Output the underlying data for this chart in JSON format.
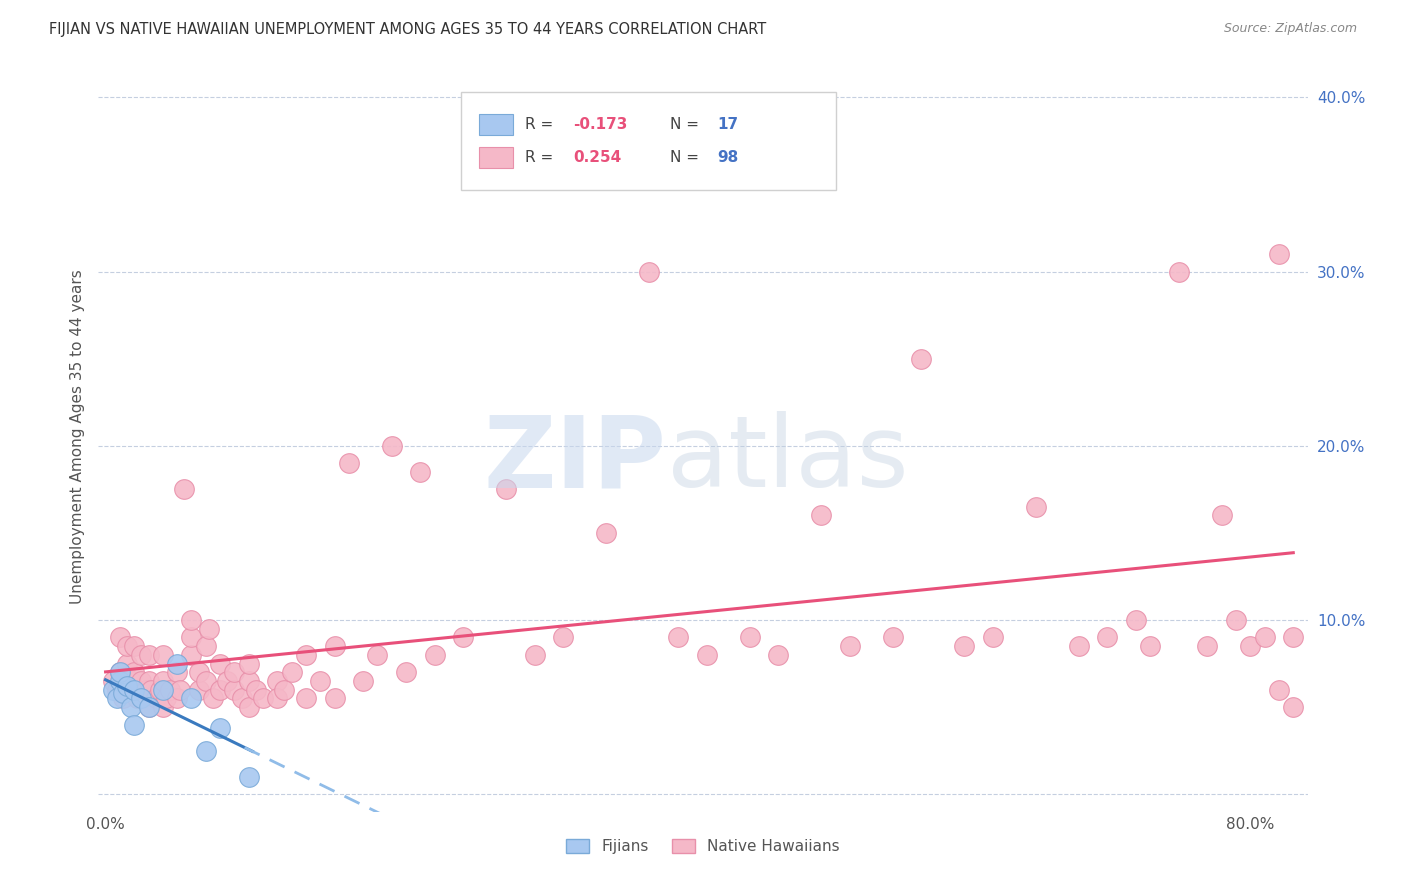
{
  "title": "FIJIAN VS NATIVE HAWAIIAN UNEMPLOYMENT AMONG AGES 35 TO 44 YEARS CORRELATION CHART",
  "source": "Source: ZipAtlas.com",
  "ylabel": "Unemployment Among Ages 35 to 44 years",
  "fijian_color": "#a8c8f0",
  "fijian_edge": "#7aaad8",
  "hawaiian_color": "#f5b8c8",
  "hawaiian_edge": "#e890aa",
  "fijian_line_color": "#3a7abf",
  "fijian_dash_color": "#90bce8",
  "hawaiian_line_color": "#e8507a",
  "xlim": [
    -0.005,
    0.84
  ],
  "ylim": [
    -0.01,
    0.42
  ],
  "fijian_R": -0.173,
  "fijian_N": 17,
  "hawaiian_R": 0.254,
  "hawaiian_N": 98,
  "fijian_x": [
    0.005,
    0.008,
    0.01,
    0.01,
    0.012,
    0.015,
    0.018,
    0.02,
    0.02,
    0.025,
    0.03,
    0.04,
    0.05,
    0.06,
    0.07,
    0.08,
    0.1
  ],
  "fijian_y": [
    0.06,
    0.055,
    0.065,
    0.07,
    0.058,
    0.062,
    0.05,
    0.06,
    0.04,
    0.055,
    0.05,
    0.06,
    0.075,
    0.055,
    0.025,
    0.038,
    0.01
  ],
  "hawaiian_x": [
    0.005,
    0.008,
    0.01,
    0.01,
    0.012,
    0.014,
    0.015,
    0.015,
    0.018,
    0.02,
    0.02,
    0.02,
    0.022,
    0.025,
    0.025,
    0.028,
    0.03,
    0.03,
    0.03,
    0.032,
    0.035,
    0.038,
    0.04,
    0.04,
    0.04,
    0.042,
    0.045,
    0.05,
    0.05,
    0.052,
    0.055,
    0.06,
    0.06,
    0.06,
    0.065,
    0.065,
    0.07,
    0.07,
    0.072,
    0.075,
    0.08,
    0.08,
    0.085,
    0.09,
    0.09,
    0.095,
    0.1,
    0.1,
    0.1,
    0.105,
    0.11,
    0.12,
    0.12,
    0.125,
    0.13,
    0.14,
    0.14,
    0.15,
    0.16,
    0.16,
    0.17,
    0.18,
    0.19,
    0.2,
    0.21,
    0.22,
    0.23,
    0.25,
    0.28,
    0.3,
    0.32,
    0.35,
    0.38,
    0.4,
    0.42,
    0.45,
    0.47,
    0.5,
    0.52,
    0.55,
    0.57,
    0.6,
    0.62,
    0.65,
    0.68,
    0.7,
    0.72,
    0.73,
    0.75,
    0.77,
    0.78,
    0.79,
    0.8,
    0.81,
    0.82,
    0.82,
    0.83,
    0.83
  ],
  "hawaiian_y": [
    0.065,
    0.06,
    0.07,
    0.09,
    0.055,
    0.06,
    0.075,
    0.085,
    0.065,
    0.06,
    0.07,
    0.085,
    0.055,
    0.065,
    0.08,
    0.06,
    0.05,
    0.065,
    0.08,
    0.06,
    0.055,
    0.06,
    0.05,
    0.065,
    0.08,
    0.055,
    0.06,
    0.055,
    0.07,
    0.06,
    0.175,
    0.08,
    0.09,
    0.1,
    0.06,
    0.07,
    0.065,
    0.085,
    0.095,
    0.055,
    0.06,
    0.075,
    0.065,
    0.06,
    0.07,
    0.055,
    0.05,
    0.065,
    0.075,
    0.06,
    0.055,
    0.065,
    0.055,
    0.06,
    0.07,
    0.055,
    0.08,
    0.065,
    0.055,
    0.085,
    0.19,
    0.065,
    0.08,
    0.2,
    0.07,
    0.185,
    0.08,
    0.09,
    0.175,
    0.08,
    0.09,
    0.15,
    0.3,
    0.09,
    0.08,
    0.09,
    0.08,
    0.16,
    0.085,
    0.09,
    0.25,
    0.085,
    0.09,
    0.165,
    0.085,
    0.09,
    0.1,
    0.085,
    0.3,
    0.085,
    0.16,
    0.1,
    0.085,
    0.09,
    0.06,
    0.31,
    0.09,
    0.05
  ]
}
